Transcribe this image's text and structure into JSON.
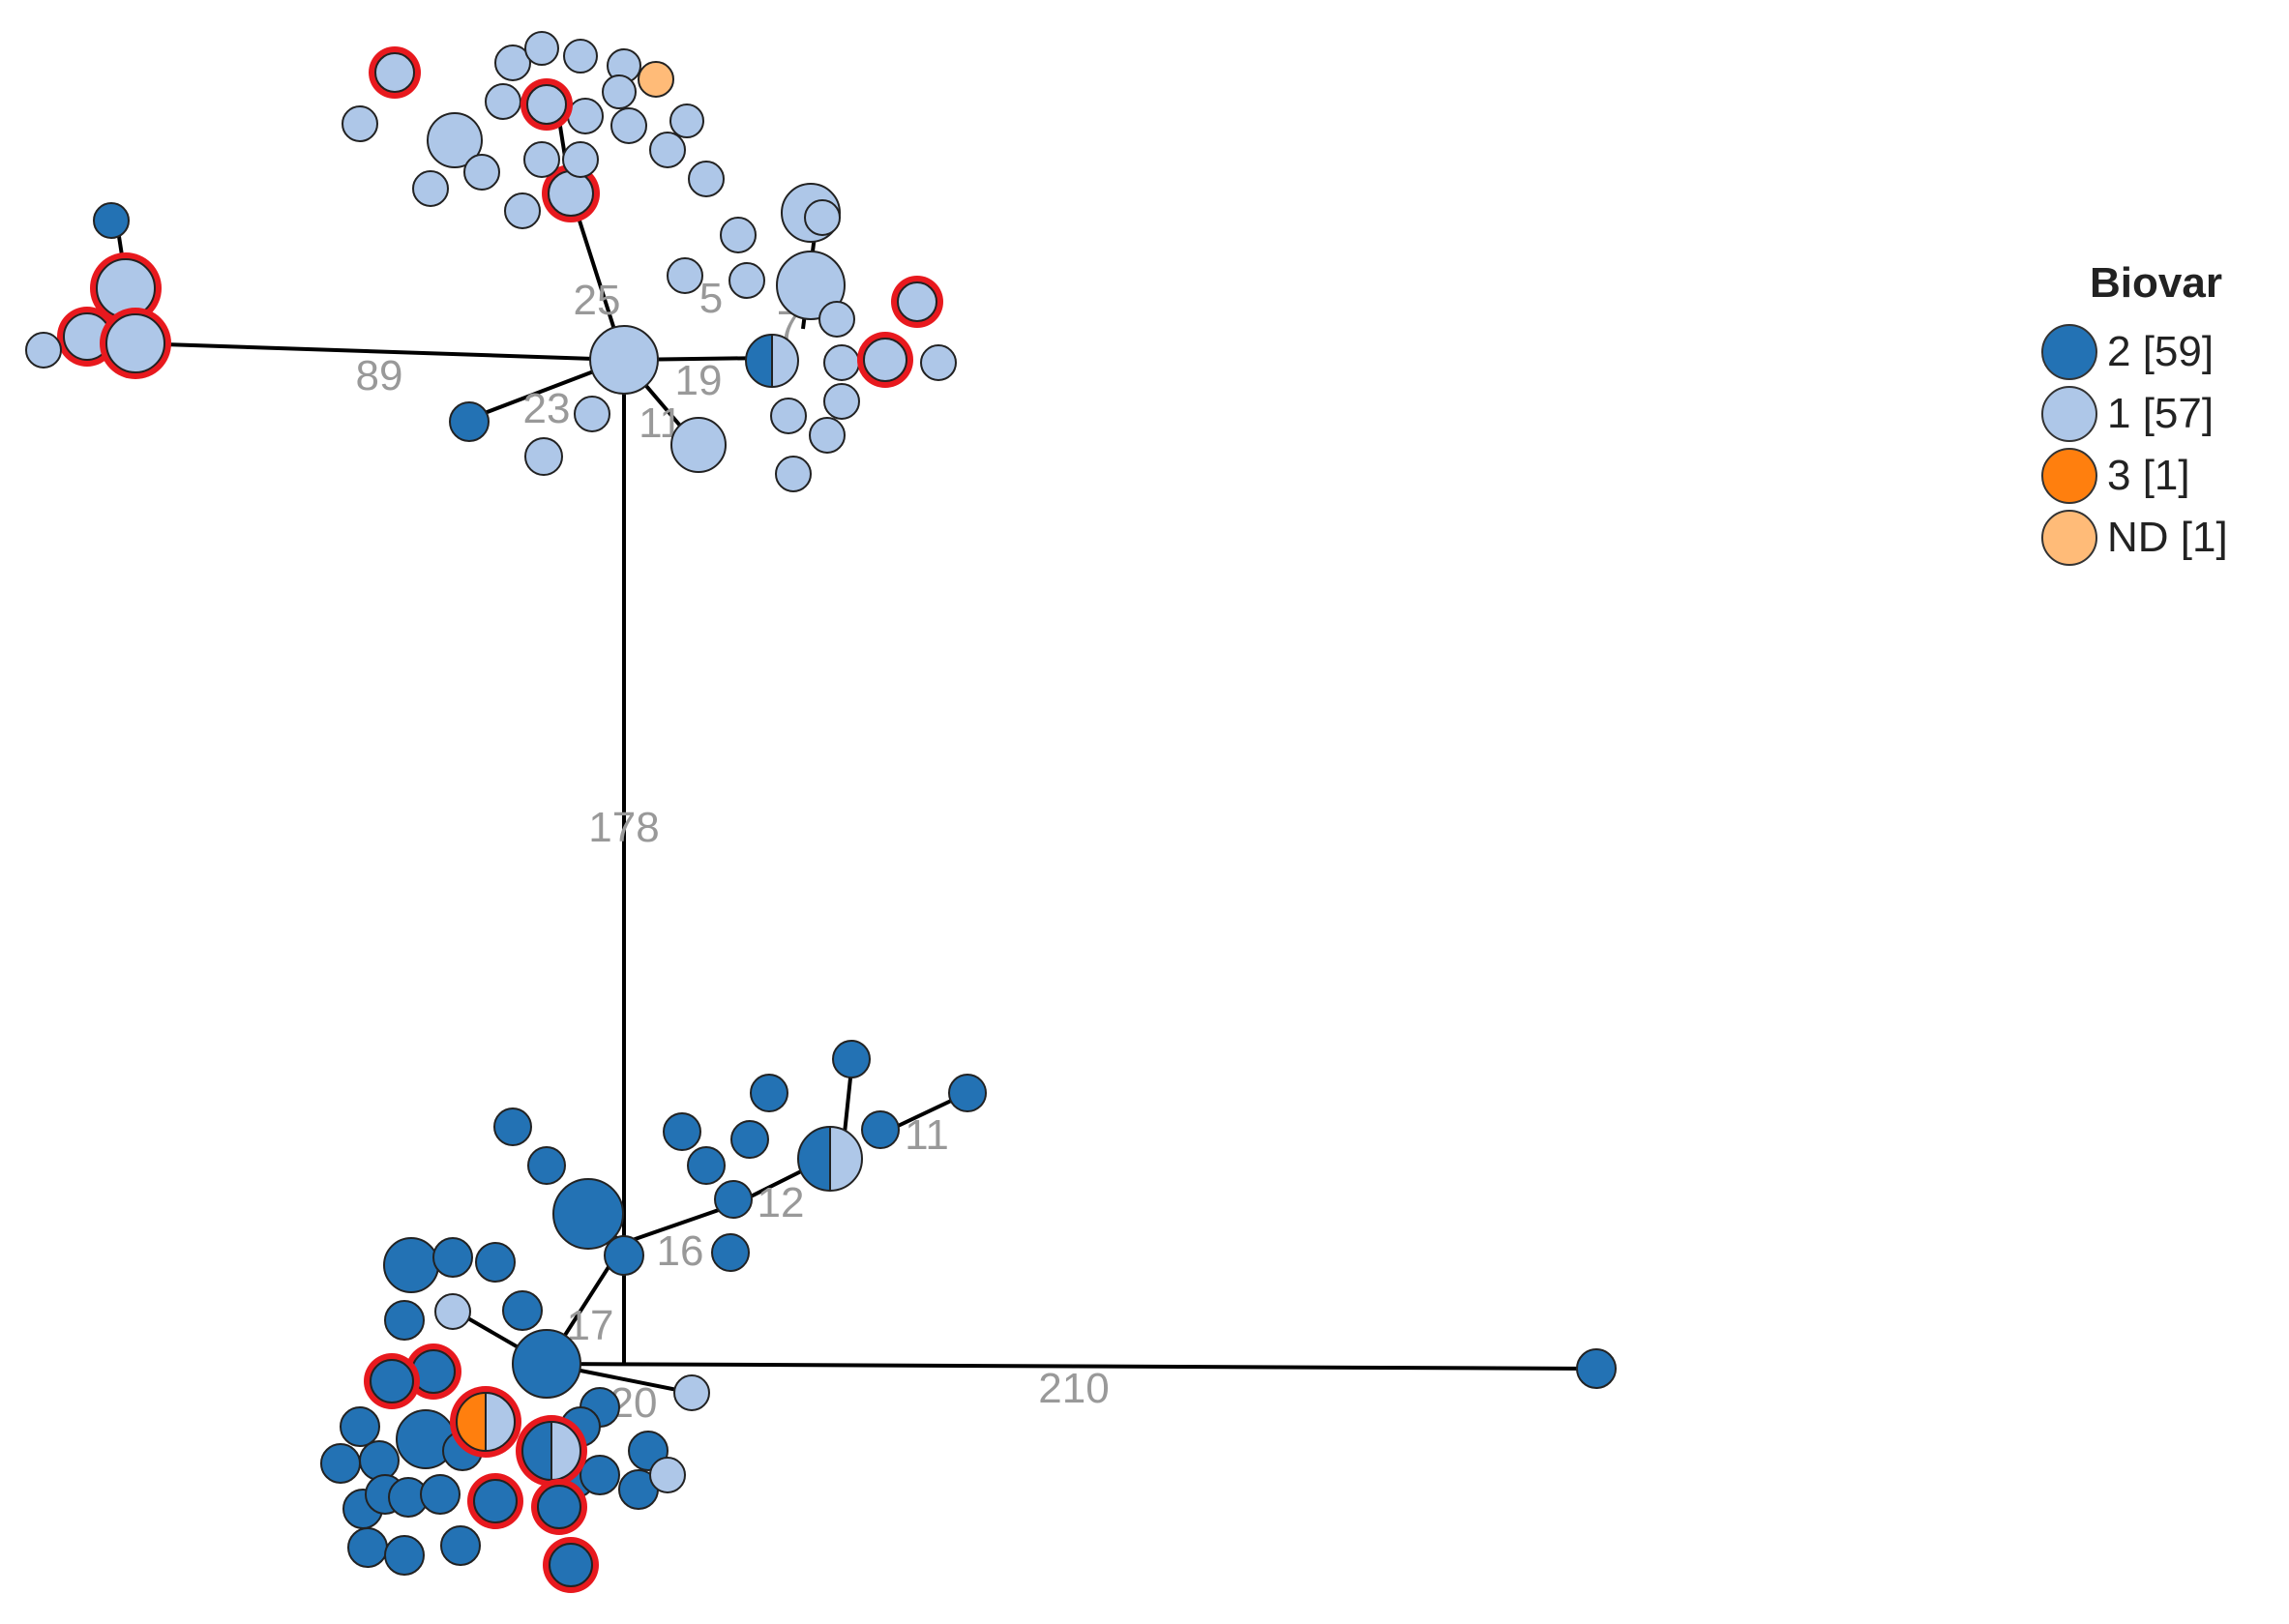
{
  "legend": {
    "title": "Biovar",
    "items": [
      {
        "label": "2 [59]",
        "color": "#2372B4"
      },
      {
        "label": "1 [57]",
        "color": "#AEC7E8"
      },
      {
        "label": "3 [1]",
        "color": "#FF7F0E"
      },
      {
        "label": "ND [1]",
        "color": "#FFBB78"
      }
    ]
  },
  "colors": {
    "biovar2": "#2372B4",
    "biovar1": "#AEC7E8",
    "biovar3": "#FF7F0E",
    "nd": "#FFBB78",
    "highlight": "#E8191E"
  },
  "edge_labels": [
    "89",
    "25",
    "19",
    "23",
    "11",
    "178",
    "16",
    "12",
    "17",
    "210",
    "20",
    "11",
    "5",
    "7"
  ]
}
